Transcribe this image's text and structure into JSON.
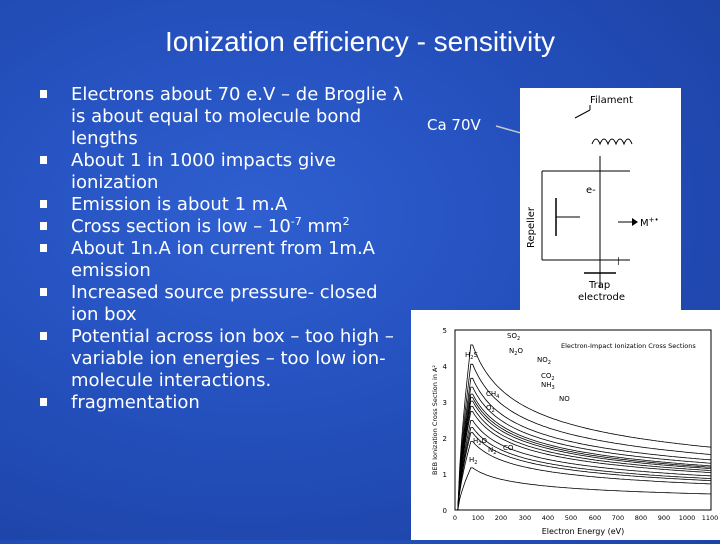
{
  "slide": {
    "title": "Ionization efficiency - sensitivity",
    "bullets": [
      {
        "text": "Electrons about 70 e.V – de Broglie λ is about equal to molecule bond lengths"
      },
      {
        "text": "About 1 in 1000 impacts give ionization"
      },
      {
        "text": "Emission is about 1 m.A"
      },
      {
        "pre": "Cross section is low – 10",
        "sup": "-7",
        "mid": " mm",
        "sup2": "2"
      },
      {
        "text": "About 1n.A ion current from 1m.A emission"
      },
      {
        "text": "Increased source pressure- closed ion box"
      },
      {
        "text": "Potential across ion box – too high – variable ion energies – too low ion-molecule interactions."
      },
      {
        "text": "fragmentation"
      }
    ],
    "annotation": "Ca 70V"
  },
  "diagram": {
    "filament": "Filament",
    "electron": "e-",
    "repeller": "Repeller",
    "ion": "M",
    "ion_charge": "+•",
    "trap": "Trap",
    "trap2": "electrode"
  },
  "graph": {
    "title": "Electron-Impact Ionization Cross Sections",
    "ylabel": "BEB Ionization Cross Section in A²",
    "xlabel": "Electron Energy (eV)",
    "yticks": [
      "0",
      "1",
      "2",
      "3",
      "4",
      "5"
    ],
    "xticks": [
      "0",
      "100",
      "200",
      "300",
      "400",
      "500",
      "600",
      "700",
      "800",
      "900",
      "1000",
      "1100"
    ],
    "species": {
      "so2": "SO",
      "so2_sub": "2",
      "h2s": "H",
      "h2s_sub": "2",
      "h2s_tail": "S",
      "n2o": "N",
      "n2o_sub": "2",
      "n2o_tail": "O",
      "no2": "NO",
      "no2_sub": "2",
      "co2": "CO",
      "co2_sub": "2",
      "nh3": "NH",
      "nh3_sub": "3",
      "no": "NO",
      "ch4": "CH",
      "ch4_sub": "4",
      "o2": "O",
      "o2_sub": "2",
      "h2o": "H",
      "h2o_sub": "2",
      "h2o_tail": "O",
      "n2": "N",
      "n2_sub": "2",
      "co": "CO",
      "h2": "H",
      "h2_sub": "2"
    }
  },
  "colors": {
    "background": "#2450bd",
    "text": "#ffffff"
  }
}
